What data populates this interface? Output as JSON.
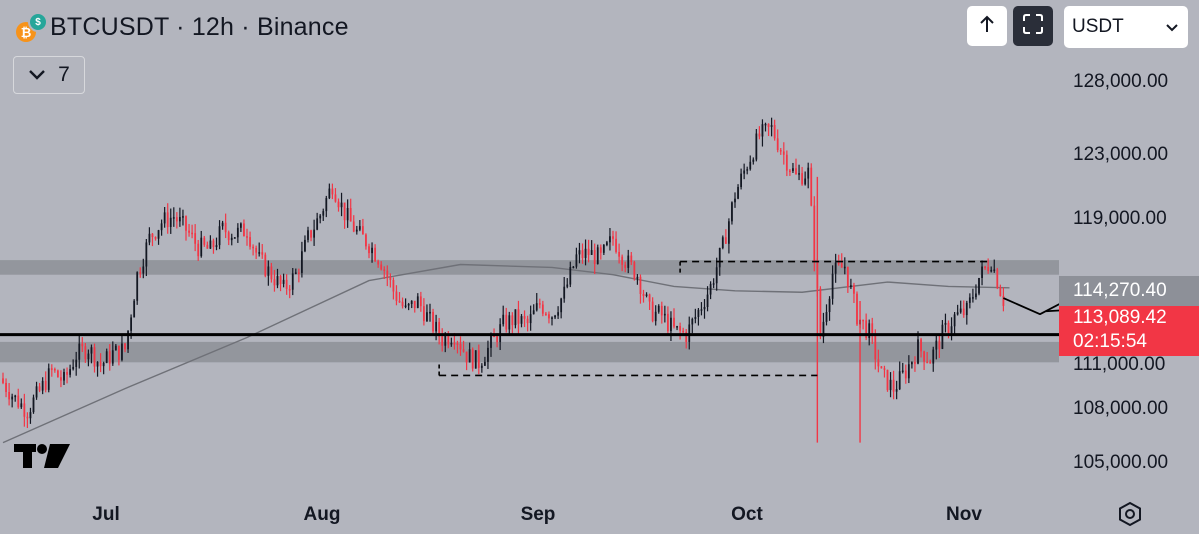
{
  "header": {
    "symbol": "BTCUSDT",
    "interval": "12h",
    "exchange": "Binance",
    "title": "BTCUSDT · 12h · Binance",
    "indicators_count": "7",
    "currency": "USDT"
  },
  "price_tags": {
    "level_price": "114,270.40",
    "last_price": "113,089.42",
    "countdown": "02:15:54"
  },
  "colors": {
    "background": "#b3b5be",
    "up_candle": "#131722",
    "down_candle": "#f23645",
    "zone": "#8d9098",
    "moving_average": "#6f7178",
    "support_line": "#000000"
  },
  "chart_data": {
    "type": "candlestick",
    "y_axis_ticks": [
      "128,000.00",
      "123,000.00",
      "119,000.00",
      "111,000.00",
      "108,000.00",
      "105,000.00"
    ],
    "x_axis_ticks": [
      "Jul",
      "Aug",
      "Sep",
      "Oct",
      "Nov"
    ],
    "close_path": [
      [
        0,
        107400
      ],
      [
        4,
        106300
      ],
      [
        8,
        105500
      ],
      [
        12,
        106800
      ],
      [
        16,
        108200
      ],
      [
        20,
        107500
      ],
      [
        24,
        109300
      ],
      [
        28,
        109800
      ],
      [
        32,
        108600
      ],
      [
        36,
        109400
      ],
      [
        40,
        109700
      ],
      [
        44,
        114800
      ],
      [
        48,
        117300
      ],
      [
        52,
        118400
      ],
      [
        56,
        118800
      ],
      [
        60,
        117900
      ],
      [
        64,
        116700
      ],
      [
        68,
        116500
      ],
      [
        72,
        117900
      ],
      [
        76,
        117600
      ],
      [
        80,
        117900
      ],
      [
        84,
        115800
      ],
      [
        88,
        114800
      ],
      [
        92,
        113800
      ],
      [
        96,
        114800
      ],
      [
        100,
        117300
      ],
      [
        104,
        118900
      ],
      [
        108,
        121000
      ],
      [
        112,
        119000
      ],
      [
        116,
        117700
      ],
      [
        120,
        116900
      ],
      [
        124,
        115700
      ],
      [
        128,
        113700
      ],
      [
        132,
        112300
      ],
      [
        136,
        113000
      ],
      [
        140,
        111600
      ],
      [
        144,
        110400
      ],
      [
        148,
        110800
      ],
      [
        152,
        109300
      ],
      [
        156,
        108800
      ],
      [
        160,
        110000
      ],
      [
        164,
        111400
      ],
      [
        168,
        111800
      ],
      [
        172,
        111400
      ],
      [
        176,
        112800
      ],
      [
        180,
        112100
      ],
      [
        184,
        113500
      ],
      [
        188,
        116000
      ],
      [
        192,
        116300
      ],
      [
        196,
        115900
      ],
      [
        200,
        117300
      ],
      [
        204,
        115800
      ],
      [
        208,
        114800
      ],
      [
        212,
        112300
      ],
      [
        216,
        112000
      ],
      [
        220,
        111000
      ],
      [
        224,
        110700
      ],
      [
        228,
        112300
      ],
      [
        232,
        114000
      ],
      [
        236,
        116700
      ],
      [
        240,
        120300
      ],
      [
        244,
        122400
      ],
      [
        248,
        124300
      ],
      [
        252,
        124800
      ],
      [
        256,
        123000
      ],
      [
        260,
        121500
      ],
      [
        264,
        121800
      ],
      [
        268,
        110600
      ],
      [
        272,
        114900
      ],
      [
        276,
        115400
      ],
      [
        280,
        112000
      ],
      [
        284,
        110800
      ],
      [
        288,
        107900
      ],
      [
        292,
        107000
      ],
      [
        296,
        108200
      ],
      [
        300,
        109800
      ],
      [
        304,
        109000
      ],
      [
        308,
        110700
      ],
      [
        312,
        111900
      ],
      [
        316,
        112300
      ],
      [
        320,
        114600
      ],
      [
        324,
        115800
      ],
      [
        328,
        113100
      ]
    ],
    "zones": [
      {
        "from": 114800,
        "to": 115800
      },
      {
        "from": 108800,
        "to": 110200
      }
    ],
    "support_level": 110700,
    "dashed_lines": [
      {
        "price": 115700,
        "from": 222,
        "to": 323
      },
      {
        "price": 107900,
        "from": 143,
        "to": 267
      }
    ],
    "projection_paths": [
      [
        [
          328,
          113200
        ],
        [
          340,
          112100
        ],
        [
          352,
          113400
        ],
        [
          360,
          117100
        ],
        [
          366,
          116600
        ],
        [
          376,
          119500
        ]
      ],
      [
        [
          342,
          112300
        ],
        [
          360,
          112500
        ]
      ]
    ],
    "moving_average": [
      [
        0,
        103300
      ],
      [
        40,
        107000
      ],
      [
        80,
        110500
      ],
      [
        120,
        114400
      ],
      [
        150,
        115500
      ],
      [
        180,
        115300
      ],
      [
        200,
        114800
      ],
      [
        220,
        114000
      ],
      [
        240,
        113700
      ],
      [
        262,
        113600
      ],
      [
        290,
        114300
      ],
      [
        310,
        114000
      ],
      [
        330,
        113900
      ]
    ]
  }
}
